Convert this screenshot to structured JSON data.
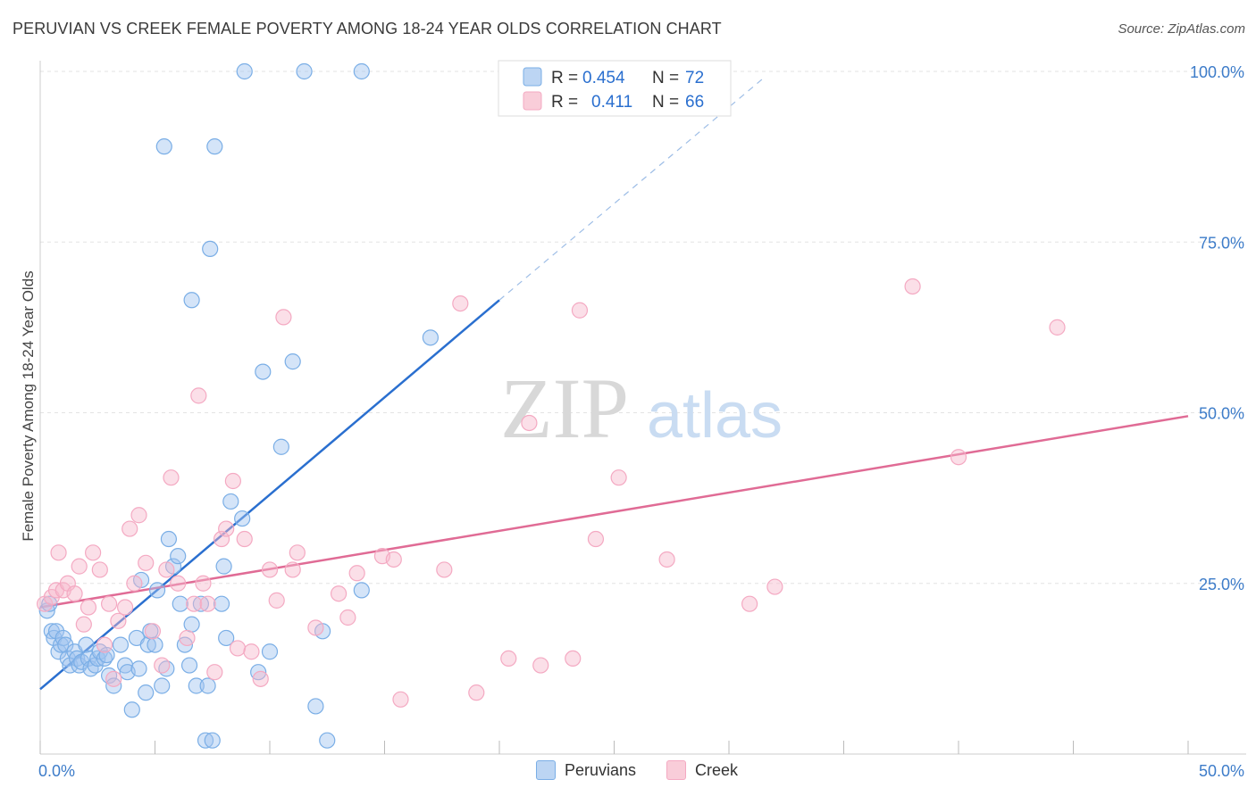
{
  "header": {
    "title": "PERUVIAN VS CREEK FEMALE POVERTY AMONG 18-24 YEAR OLDS CORRELATION CHART",
    "source": "Source: ZipAtlas.com"
  },
  "watermark": {
    "zip": "ZIP",
    "atlas": "atlas"
  },
  "legend_box": {
    "rows": [
      {
        "r_label": "R = ",
        "r_value": "0.454",
        "n_label": "N = ",
        "n_value": "72"
      },
      {
        "r_label": "R = ",
        "r_value": "0.411",
        "n_label": "N = ",
        "n_value": "66"
      }
    ]
  },
  "chart_data": {
    "type": "scatter",
    "title": "PERUVIAN VS CREEK FEMALE POVERTY AMONG 18-24 YEAR OLDS CORRELATION CHART",
    "xlabel": "",
    "ylabel": "Female Poverty Among 18-24 Year Olds",
    "xlim": [
      0,
      50
    ],
    "ylim": [
      0,
      100
    ],
    "x_tick_labels": [
      "0.0%",
      "50.0%"
    ],
    "y_tick_labels": [
      {
        "value": 25,
        "label": "25.0%"
      },
      {
        "value": 50,
        "label": "50.0%"
      },
      {
        "value": 75,
        "label": "75.0%"
      },
      {
        "value": 100,
        "label": "100.0%"
      }
    ],
    "grid": true,
    "legend_position": "bottom",
    "series": [
      {
        "name": "Peruvians",
        "color": "#7aaee6",
        "line_color": "#2a6fcf",
        "r": 0.454,
        "n": 72,
        "trend": {
          "x0": 0,
          "y0": 9.5,
          "x1": 20,
          "y1": 66.5,
          "dash_to_x": 31.5,
          "dash_to_y": 99
        },
        "points": [
          [
            0.3,
            21
          ],
          [
            0.4,
            22
          ],
          [
            0.5,
            18
          ],
          [
            0.6,
            17
          ],
          [
            0.7,
            18
          ],
          [
            0.8,
            15
          ],
          [
            0.9,
            16
          ],
          [
            1.0,
            17
          ],
          [
            1.1,
            16
          ],
          [
            1.2,
            14
          ],
          [
            1.3,
            13
          ],
          [
            1.5,
            15
          ],
          [
            1.6,
            14
          ],
          [
            1.7,
            13
          ],
          [
            1.8,
            13.5
          ],
          [
            2.0,
            16
          ],
          [
            2.1,
            14
          ],
          [
            2.2,
            12.5
          ],
          [
            2.4,
            13
          ],
          [
            2.5,
            14
          ],
          [
            2.6,
            15
          ],
          [
            2.8,
            14
          ],
          [
            2.9,
            14.5
          ],
          [
            3.0,
            11.5
          ],
          [
            3.2,
            10
          ],
          [
            3.5,
            16
          ],
          [
            3.7,
            13
          ],
          [
            3.8,
            12
          ],
          [
            4.0,
            6.5
          ],
          [
            4.2,
            17
          ],
          [
            4.3,
            12.5
          ],
          [
            4.4,
            25.5
          ],
          [
            4.6,
            9
          ],
          [
            4.7,
            16
          ],
          [
            4.8,
            18
          ],
          [
            5.0,
            16
          ],
          [
            5.1,
            24
          ],
          [
            5.3,
            10
          ],
          [
            5.5,
            12.5
          ],
          [
            5.6,
            31.5
          ],
          [
            5.8,
            27.5
          ],
          [
            6.0,
            29
          ],
          [
            6.1,
            22
          ],
          [
            6.3,
            16
          ],
          [
            6.5,
            13
          ],
          [
            6.6,
            19
          ],
          [
            6.8,
            10
          ],
          [
            7.0,
            22
          ],
          [
            7.2,
            2
          ],
          [
            7.3,
            10
          ],
          [
            7.5,
            2
          ],
          [
            7.9,
            22
          ],
          [
            8.1,
            17
          ],
          [
            8.3,
            37
          ],
          [
            8.8,
            34.5
          ],
          [
            9.5,
            12
          ],
          [
            10,
            15
          ],
          [
            10.5,
            45
          ],
          [
            11,
            57.5
          ],
          [
            12,
            7
          ],
          [
            12.3,
            18
          ],
          [
            12.5,
            2
          ],
          [
            14,
            24
          ],
          [
            17,
            61
          ],
          [
            5.4,
            89
          ],
          [
            7.6,
            89
          ],
          [
            7.4,
            74
          ],
          [
            6.6,
            66.5
          ],
          [
            9.7,
            56
          ],
          [
            8.0,
            27.5
          ],
          [
            8.9,
            100
          ],
          [
            11.5,
            100
          ],
          [
            14,
            100
          ]
        ]
      },
      {
        "name": "Creek",
        "color": "#f4a9c2",
        "line_color": "#e06b95",
        "r": 0.411,
        "n": 66,
        "trend": {
          "x0": 0,
          "y0": 21.5,
          "x1": 50,
          "y1": 49.5
        },
        "points": [
          [
            0.2,
            22
          ],
          [
            0.5,
            23
          ],
          [
            0.7,
            24
          ],
          [
            0.8,
            29.5
          ],
          [
            1.0,
            24
          ],
          [
            1.2,
            25
          ],
          [
            1.5,
            23.5
          ],
          [
            1.7,
            27.5
          ],
          [
            1.9,
            19
          ],
          [
            2.1,
            21.5
          ],
          [
            2.3,
            29.5
          ],
          [
            2.6,
            27
          ],
          [
            2.8,
            16
          ],
          [
            3.0,
            22
          ],
          [
            3.2,
            11
          ],
          [
            3.4,
            19.5
          ],
          [
            3.7,
            21.5
          ],
          [
            3.9,
            33
          ],
          [
            4.1,
            25
          ],
          [
            4.3,
            35
          ],
          [
            4.6,
            28
          ],
          [
            4.9,
            18
          ],
          [
            5.3,
            13
          ],
          [
            5.5,
            27
          ],
          [
            5.7,
            40.5
          ],
          [
            6.0,
            25
          ],
          [
            6.4,
            17
          ],
          [
            6.7,
            22
          ],
          [
            6.9,
            52.5
          ],
          [
            7.1,
            25
          ],
          [
            7.3,
            22
          ],
          [
            7.6,
            12
          ],
          [
            7.9,
            31.5
          ],
          [
            8.1,
            33
          ],
          [
            8.4,
            40
          ],
          [
            8.6,
            15.5
          ],
          [
            8.9,
            31.5
          ],
          [
            9.2,
            15
          ],
          [
            9.6,
            11
          ],
          [
            10.0,
            27
          ],
          [
            10.3,
            22.5
          ],
          [
            10.6,
            64
          ],
          [
            11.0,
            27
          ],
          [
            11.2,
            29.5
          ],
          [
            12.0,
            18.5
          ],
          [
            13.0,
            23.5
          ],
          [
            13.4,
            20
          ],
          [
            13.8,
            26.5
          ],
          [
            14.9,
            29
          ],
          [
            15.4,
            28.5
          ],
          [
            15.7,
            8
          ],
          [
            17.6,
            27
          ],
          [
            18.3,
            66
          ],
          [
            19.0,
            9
          ],
          [
            20.4,
            14
          ],
          [
            21.3,
            48.5
          ],
          [
            21.8,
            13
          ],
          [
            23.2,
            14
          ],
          [
            23.5,
            65
          ],
          [
            24.2,
            31.5
          ],
          [
            25.2,
            40.5
          ],
          [
            27.3,
            28.5
          ],
          [
            30.9,
            22
          ],
          [
            32.0,
            24.5
          ],
          [
            38.0,
            68.5
          ],
          [
            40.0,
            43.5
          ],
          [
            44.3,
            62.5
          ]
        ]
      }
    ]
  }
}
